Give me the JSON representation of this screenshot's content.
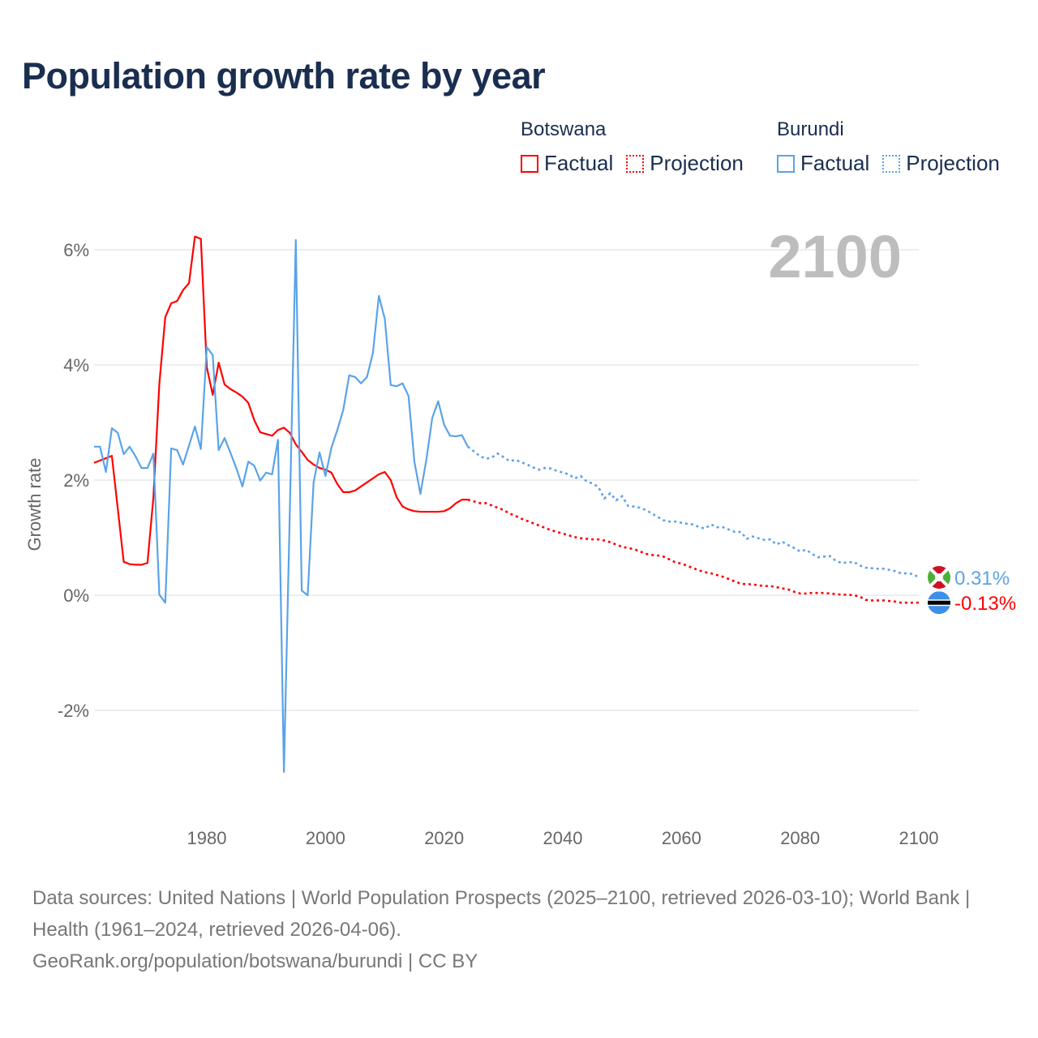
{
  "title": "Population growth rate by year",
  "legend": [
    {
      "name": "Botswana",
      "factual": "Factual",
      "projection": "Projection",
      "color": "#ff0000"
    },
    {
      "name": "Burundi",
      "factual": "Factual",
      "projection": "Projection",
      "color": "#5ba3e8"
    }
  ],
  "footer": {
    "sources": "Data sources: United Nations | World Population Prospects (2025–2100, retrieved 2026-03-10); World Bank | Health (1961–2024, retrieved 2026-04-06).",
    "credit": "GeoRank.org/population/botswana/burundi | CC BY"
  },
  "chart_data": {
    "type": "line",
    "title": "Population growth rate by year",
    "xlabel": "",
    "ylabel": "Growth rate",
    "year_label": "2100",
    "xlim": [
      1961,
      2100
    ],
    "ylim": [
      -3.5,
      6.5
    ],
    "x_ticks": [
      "1980",
      "2000",
      "2020",
      "2040",
      "2060",
      "2080",
      "2100"
    ],
    "x_tick_values": [
      1980,
      2000,
      2020,
      2040,
      2060,
      2080,
      2100
    ],
    "y_ticks": [
      "6%",
      "4%",
      "2%",
      "0%",
      "-2%"
    ],
    "y_tick_values": [
      6,
      4,
      2,
      0,
      -2
    ],
    "grid": true,
    "legend_position": "top-right",
    "factual_start": 1961,
    "projection_start": 2025,
    "series": [
      {
        "name": "Botswana",
        "color": "#ff0000",
        "end_label": "-0.13%",
        "flag": "botswana-flag",
        "factual": [
          2.3,
          2.34,
          2.38,
          2.42,
          1.5,
          0.58,
          0.54,
          0.53,
          0.53,
          0.56,
          1.7,
          3.67,
          4.83,
          5.07,
          5.11,
          5.3,
          5.42,
          6.23,
          6.19,
          3.96,
          3.48,
          4.04,
          3.66,
          3.58,
          3.52,
          3.45,
          3.34,
          3.04,
          2.83,
          2.8,
          2.77,
          2.87,
          2.91,
          2.82,
          2.62,
          2.49,
          2.35,
          2.27,
          2.21,
          2.18,
          2.13,
          1.93,
          1.79,
          1.79,
          1.82,
          1.89,
          1.96,
          2.03,
          2.1,
          2.14,
          2.0,
          1.7,
          1.54,
          1.49,
          1.46,
          1.45,
          1.45,
          1.45,
          1.45,
          1.46,
          1.51,
          1.6,
          1.66,
          1.66
        ],
        "projection": [
          1.63,
          1.6,
          1.6,
          1.56,
          1.52,
          1.48,
          1.42,
          1.38,
          1.33,
          1.29,
          1.25,
          1.21,
          1.17,
          1.13,
          1.1,
          1.07,
          1.04,
          1.01,
          0.99,
          0.98,
          0.97,
          0.97,
          0.95,
          0.92,
          0.88,
          0.84,
          0.82,
          0.8,
          0.76,
          0.72,
          0.7,
          0.69,
          0.67,
          0.62,
          0.57,
          0.55,
          0.51,
          0.47,
          0.43,
          0.4,
          0.38,
          0.35,
          0.32,
          0.28,
          0.24,
          0.2,
          0.19,
          0.19,
          0.17,
          0.16,
          0.16,
          0.14,
          0.12,
          0.1,
          0.06,
          0.03,
          0.03,
          0.04,
          0.04,
          0.04,
          0.03,
          0.02,
          0.01,
          0.01,
          0.0,
          -0.02,
          -0.08,
          -0.09,
          -0.09,
          -0.09,
          -0.1,
          -0.11,
          -0.13,
          -0.13,
          -0.13,
          -0.13
        ]
      },
      {
        "name": "Burundi",
        "color": "#5ba3e8",
        "end_label": "0.31%",
        "flag": "burundi-flag",
        "factual": [
          2.58,
          2.58,
          2.14,
          2.9,
          2.82,
          2.45,
          2.58,
          2.41,
          2.21,
          2.21,
          2.46,
          0.01,
          -0.13,
          2.55,
          2.52,
          2.27,
          2.6,
          2.93,
          2.54,
          4.31,
          4.17,
          2.52,
          2.73,
          2.47,
          2.2,
          1.89,
          2.32,
          2.25,
          1.99,
          2.13,
          2.1,
          2.7,
          -3.07,
          1.5,
          6.17,
          0.08,
          0.0,
          1.96,
          2.48,
          2.07,
          2.56,
          2.87,
          3.22,
          3.82,
          3.79,
          3.68,
          3.79,
          4.21,
          5.2,
          4.8,
          3.65,
          3.63,
          3.68,
          3.46,
          2.31,
          1.76,
          2.35,
          3.08,
          3.37,
          2.96,
          2.77,
          2.76,
          2.78,
          2.58
        ],
        "projection": [
          2.5,
          2.42,
          2.37,
          2.39,
          2.46,
          2.4,
          2.33,
          2.35,
          2.31,
          2.27,
          2.22,
          2.18,
          2.21,
          2.2,
          2.16,
          2.13,
          2.1,
          2.03,
          2.07,
          1.98,
          1.94,
          1.88,
          1.68,
          1.77,
          1.65,
          1.72,
          1.55,
          1.54,
          1.52,
          1.48,
          1.42,
          1.36,
          1.3,
          1.28,
          1.28,
          1.26,
          1.24,
          1.23,
          1.18,
          1.16,
          1.23,
          1.18,
          1.18,
          1.14,
          1.1,
          1.1,
          0.98,
          1.02,
          0.99,
          0.96,
          0.97,
          0.88,
          0.93,
          0.87,
          0.82,
          0.76,
          0.79,
          0.72,
          0.66,
          0.67,
          0.68,
          0.6,
          0.56,
          0.57,
          0.58,
          0.52,
          0.48,
          0.47,
          0.46,
          0.46,
          0.44,
          0.42,
          0.38,
          0.38,
          0.37,
          0.31
        ]
      }
    ]
  }
}
